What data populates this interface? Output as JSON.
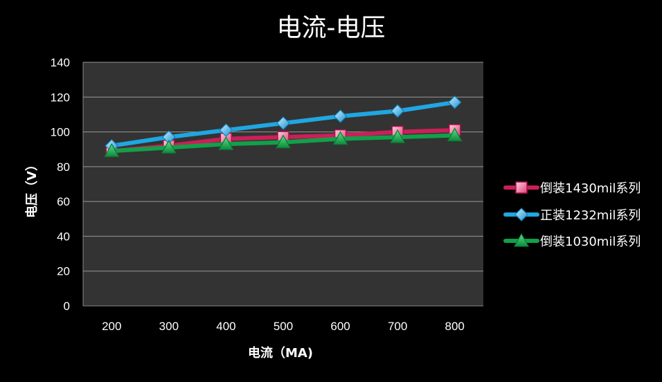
{
  "chart_data": {
    "type": "line",
    "title": "电流-电压",
    "xlabel": "电流（MA)",
    "ylabel": "电压（V）",
    "categories": [
      "200",
      "300",
      "400",
      "500",
      "600",
      "700",
      "800"
    ],
    "yticks": [
      "0",
      "20",
      "40",
      "60",
      "80",
      "100",
      "120",
      "140"
    ],
    "ylim": [
      0,
      140
    ],
    "grid": true,
    "legend_position": "right",
    "plot_background": "#333333",
    "series": [
      {
        "name": "倒装1430mil系列",
        "values": [
          89,
          92,
          96,
          97,
          98,
          100,
          101
        ],
        "color": "#cc1f5a",
        "marker": "square"
      },
      {
        "name": "正装1232mil系列",
        "values": [
          92,
          97,
          101,
          105,
          109,
          112,
          117
        ],
        "color": "#1fa7e1",
        "marker": "diamond"
      },
      {
        "name": "倒装1030mil系列",
        "values": [
          89,
          91,
          93,
          94,
          96,
          97,
          98
        ],
        "color": "#12a04a",
        "marker": "triangle"
      }
    ]
  }
}
